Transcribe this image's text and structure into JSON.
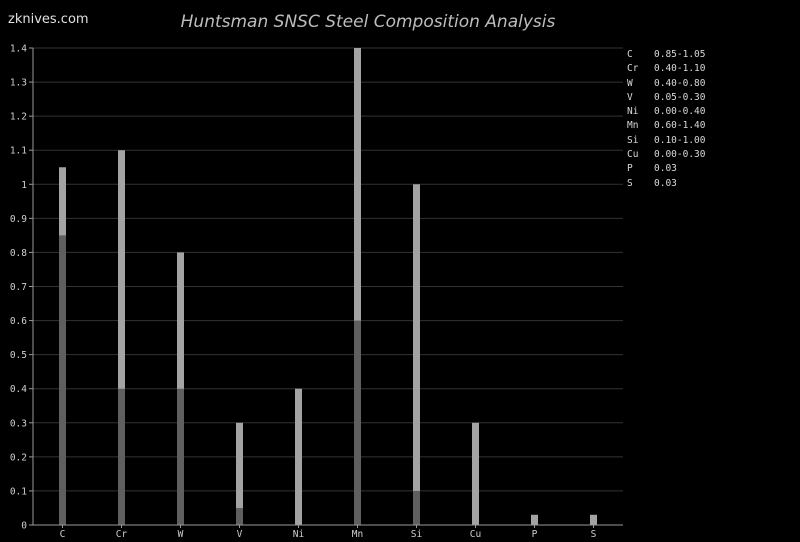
{
  "site": {
    "watermark": "zknives.com"
  },
  "colors": {
    "background": "#000000",
    "grid": "#333333",
    "axis": "#9a9a9a",
    "text": "#d0d0d0",
    "bar_base": "#5f5f5f",
    "bar_range": "#a3a3a3"
  },
  "chart_data": {
    "type": "bar",
    "title": "Huntsman SNSC Steel Composition Analysis",
    "xlabel": "",
    "ylabel": "",
    "ylim": [
      0,
      1.4
    ],
    "yticks": [
      "0",
      "0.1",
      "0.2",
      "0.3",
      "0.4",
      "0.5",
      "0.6",
      "0.7",
      "0.8",
      "0.9",
      "1",
      "1.1",
      "1.2",
      "1.3",
      "1.4"
    ],
    "grid": true,
    "legend_position": "right",
    "categories": [
      "C",
      "Cr",
      "W",
      "V",
      "Ni",
      "Mn",
      "Si",
      "Cu",
      "P",
      "S"
    ],
    "series": [
      {
        "values": [
          0.85,
          0.4,
          0.4,
          0.05,
          0.0,
          0.6,
          0.1,
          0.0,
          0.0,
          0.0
        ]
      },
      {
        "values": [
          1.05,
          1.1,
          0.8,
          0.3,
          0.4,
          1.4,
          1.0,
          0.3,
          0.03,
          0.03
        ]
      }
    ],
    "legend": [
      {
        "element": "C",
        "range": "0.85-1.05"
      },
      {
        "element": "Cr",
        "range": "0.40-1.10"
      },
      {
        "element": "W",
        "range": "0.40-0.80"
      },
      {
        "element": "V",
        "range": "0.05-0.30"
      },
      {
        "element": "Ni",
        "range": "0.00-0.40"
      },
      {
        "element": "Mn",
        "range": "0.60-1.40"
      },
      {
        "element": "Si",
        "range": "0.10-1.00"
      },
      {
        "element": "Cu",
        "range": "0.00-0.30"
      },
      {
        "element": "P",
        "range": "0.03"
      },
      {
        "element": "S",
        "range": "0.03"
      }
    ]
  }
}
